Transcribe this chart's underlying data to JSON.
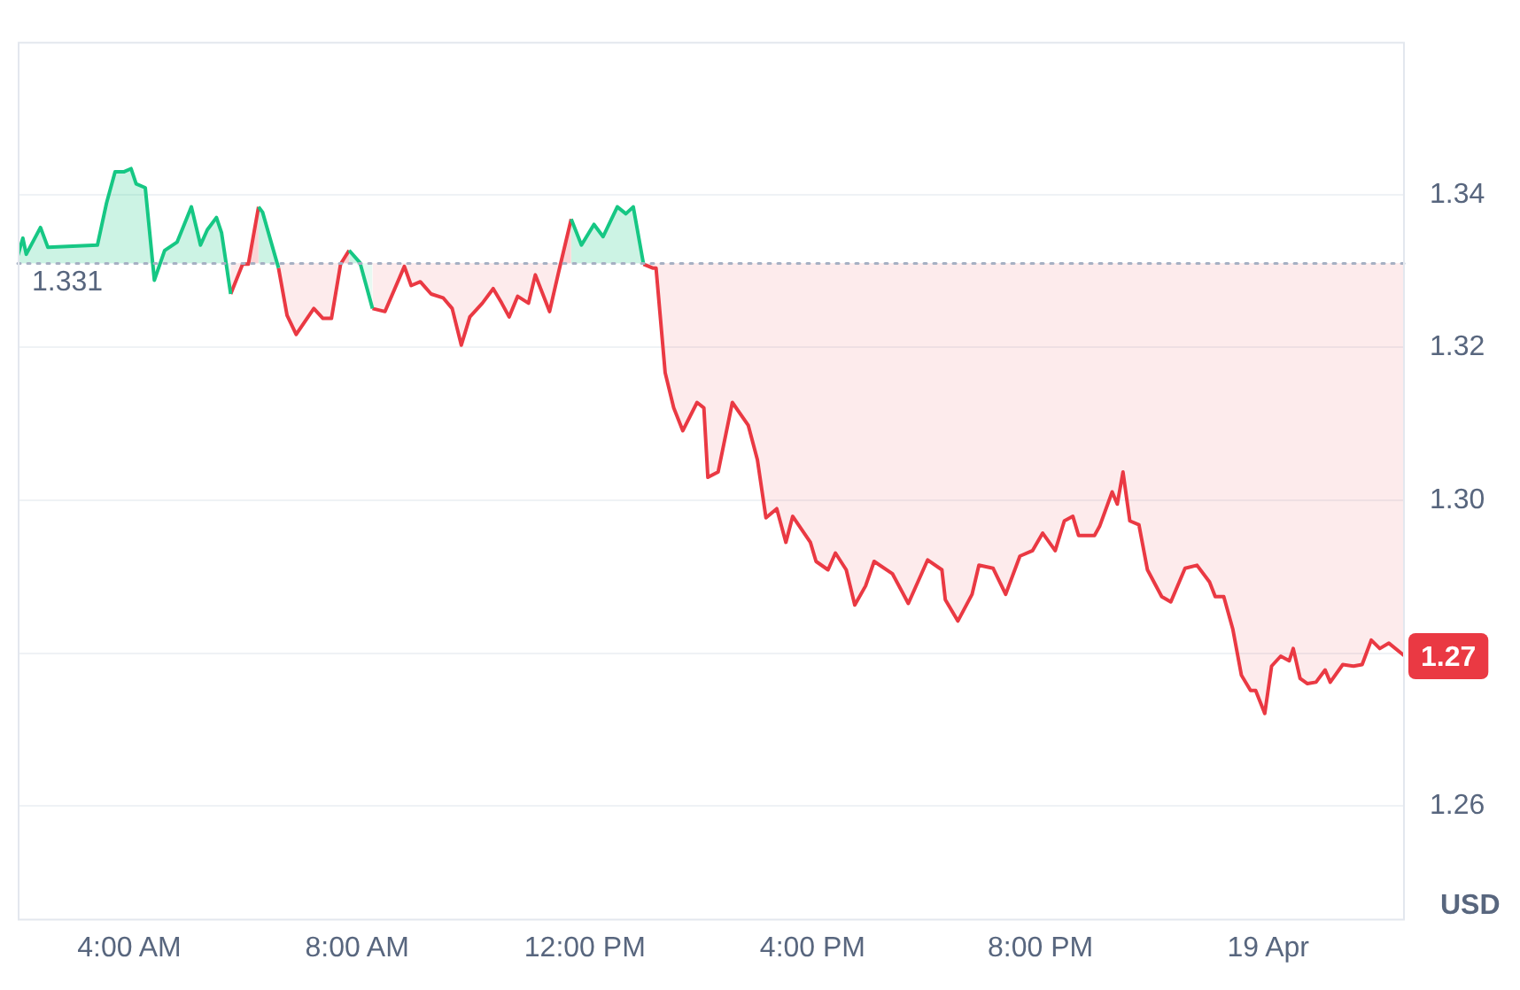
{
  "chart_data": {
    "type": "line",
    "ylabel": "USD",
    "xlim": [
      2.04,
      26.4
    ],
    "xticks": [
      {
        "value": 4,
        "label": "4:00 AM"
      },
      {
        "value": 8,
        "label": "8:00 AM"
      },
      {
        "value": 12,
        "label": "12:00 PM"
      },
      {
        "value": 16,
        "label": "4:00 PM"
      },
      {
        "value": 20,
        "label": "8:00 PM"
      },
      {
        "value": 24,
        "label": "19 Apr"
      }
    ],
    "ylim": [
      1.245,
      1.36
    ],
    "yticks": [
      1.26,
      {
        "value": 1.28,
        "label": null
      },
      {
        "value": 1.3,
        "label": "1.30"
      },
      1.32,
      1.34
    ],
    "grid": "y",
    "legend": false,
    "marker": "none",
    "line_style": "solid",
    "ref_lines": [
      {
        "axis": "y",
        "value": 1.331,
        "label": "1.331",
        "color": "#a6b0c3",
        "line_style": "dotted"
      }
    ],
    "annotations": [
      {
        "text": "1.27",
        "x": 26.4,
        "y": 1.2796
      }
    ],
    "x": [
      2.04,
      2.13,
      2.19,
      2.44,
      2.57,
      3.44,
      3.6,
      3.75,
      3.91,
      4.03,
      4.12,
      4.28,
      4.44,
      4.62,
      4.84,
      5.09,
      5.25,
      5.37,
      5.53,
      5.62,
      5.78,
      5.99,
      6.09,
      6.27,
      6.34,
      6.62,
      6.77,
      6.93,
      7.24,
      7.4,
      7.55,
      7.71,
      7.86,
      8.05,
      8.27,
      8.49,
      8.83,
      8.95,
      9.11,
      9.3,
      9.51,
      9.67,
      9.83,
      9.98,
      10.2,
      10.39,
      10.54,
      10.67,
      10.82,
      11.01,
      11.13,
      11.38,
      11.54,
      11.76,
      11.94,
      12.16,
      12.32,
      12.57,
      12.72,
      12.85,
      13.03,
      13.19,
      13.25,
      13.41,
      13.56,
      13.72,
      13.97,
      14.09,
      14.16,
      14.34,
      14.59,
      14.87,
      15.03,
      15.18,
      15.37,
      15.53,
      15.65,
      15.96,
      16.06,
      16.27,
      16.4,
      16.59,
      16.74,
      16.93,
      17.08,
      17.4,
      17.68,
      18.02,
      18.27,
      18.33,
      18.55,
      18.8,
      18.92,
      19.17,
      19.39,
      19.64,
      19.86,
      20.04,
      20.26,
      20.42,
      20.57,
      20.67,
      20.95,
      21.04,
      21.26,
      21.35,
      21.45,
      21.57,
      21.73,
      21.88,
      22.13,
      22.29,
      22.54,
      22.75,
      22.97,
      23.07,
      23.22,
      23.38,
      23.53,
      23.69,
      23.78,
      23.94,
      24.06,
      24.22,
      24.37,
      24.44,
      24.56,
      24.69,
      24.84,
      25,
      25.09,
      25.31,
      25.5,
      25.65,
      25.81,
      25.96,
      26.12,
      26.4
    ],
    "series": [
      {
        "color": "#16c784",
        "values": [
          1.332,
          1.3343,
          1.3322,
          1.3357,
          1.3331,
          1.3334,
          1.3389,
          1.343,
          1.343,
          1.3434,
          1.3414,
          1.3409,
          1.3288,
          1.3327,
          1.3338,
          1.3384,
          1.3334,
          1.3354,
          1.337,
          1.335,
          1.327,
          null,
          null,
          1.3384,
          1.3377,
          1.3304,
          null,
          null,
          null,
          null,
          null,
          null,
          1.3327,
          1.3311,
          1.3251,
          null,
          null,
          null,
          null,
          null,
          null,
          null,
          null,
          null,
          null,
          null,
          null,
          null,
          null,
          null,
          null,
          null,
          null,
          1.3368,
          1.3334,
          1.3361,
          1.3345,
          1.3384,
          1.3375,
          1.3384,
          1.3309,
          null,
          null,
          null,
          null,
          null,
          null,
          null,
          null,
          null,
          null,
          null,
          null,
          null,
          null,
          null,
          null,
          null,
          null,
          null,
          null,
          null,
          null,
          null,
          null,
          null,
          null,
          null,
          null,
          null,
          null,
          null,
          null,
          null,
          null,
          null,
          null,
          null,
          null,
          null,
          null,
          null,
          null,
          null,
          null,
          null,
          null,
          null,
          null,
          null,
          null,
          null,
          null,
          null,
          null,
          null,
          null,
          null,
          null,
          null,
          null,
          null,
          null,
          null,
          null,
          null,
          null,
          null,
          null,
          null,
          null,
          null,
          null,
          null,
          null,
          null,
          null,
          null
        ]
      },
      {
        "color": "#ea3943",
        "values": [
          null,
          null,
          null,
          null,
          null,
          null,
          null,
          null,
          null,
          null,
          null,
          null,
          null,
          null,
          null,
          null,
          null,
          null,
          null,
          null,
          1.327,
          1.3309,
          1.3309,
          1.3384,
          null,
          1.3304,
          1.3242,
          1.3217,
          1.3251,
          1.3238,
          1.3238,
          1.3309,
          1.3327,
          null,
          1.3251,
          1.3247,
          1.3306,
          1.3281,
          1.3286,
          1.327,
          1.3265,
          1.3251,
          1.3203,
          1.324,
          1.3258,
          1.3277,
          1.3258,
          1.324,
          1.3267,
          1.3258,
          1.3295,
          1.3247,
          1.3299,
          1.3368,
          null,
          null,
          null,
          null,
          null,
          null,
          1.3309,
          1.3304,
          1.3304,
          1.3167,
          1.3121,
          1.3091,
          1.3128,
          1.3121,
          1.303,
          1.3037,
          1.3128,
          1.3098,
          1.3053,
          1.2977,
          1.2989,
          1.2945,
          1.2979,
          1.2945,
          1.292,
          1.2909,
          1.2931,
          1.2909,
          1.2863,
          1.2888,
          1.292,
          1.2904,
          1.2865,
          1.2922,
          1.2909,
          1.287,
          1.2842,
          1.2877,
          1.2915,
          1.2911,
          1.2877,
          1.2927,
          1.2934,
          1.2957,
          1.2934,
          1.2973,
          1.2979,
          1.2954,
          1.2954,
          1.2966,
          1.3011,
          1.2995,
          1.3037,
          1.2973,
          1.2968,
          1.2909,
          1.2874,
          1.2867,
          1.2911,
          1.2915,
          1.2893,
          1.2874,
          1.2874,
          1.2831,
          1.2771,
          1.2751,
          1.2751,
          1.2721,
          1.2783,
          1.2796,
          1.279,
          1.2806,
          1.2767,
          1.276,
          1.2762,
          1.2778,
          1.2762,
          1.2785,
          1.2783,
          1.2785,
          1.2817,
          1.2806,
          1.2813,
          1.2796
        ]
      }
    ]
  }
}
